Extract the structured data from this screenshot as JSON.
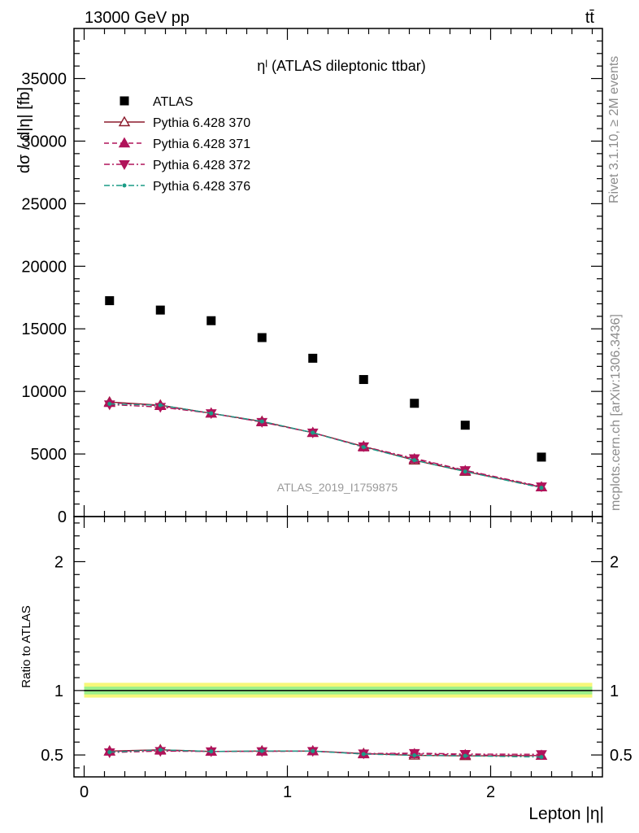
{
  "header": {
    "left": "13000 GeV pp",
    "right": "tt̄"
  },
  "side_labels": {
    "rivet": "Rivet 3.1.10, ≥ 2M events",
    "mcplots": "mcplots.cern.ch [arXiv:1306.3436]"
  },
  "chart_data": [
    {
      "type": "scatter",
      "title": "ηˡ (ATLAS dileptonic ttbar)",
      "ylabel": "dσ / d|η| [fb]",
      "analysis_label": "ATLAS_2019_I1759875",
      "ylim": [
        0,
        39000
      ],
      "xlim": [
        -0.05,
        2.55
      ],
      "y_ticks": [
        0,
        5000,
        10000,
        15000,
        20000,
        25000,
        30000,
        35000
      ],
      "y_tick_labels": [
        "0",
        "5000",
        "10000",
        "15000",
        "20000",
        "25000",
        "30000",
        "35000"
      ],
      "x": [
        0.125,
        0.375,
        0.625,
        0.875,
        1.125,
        1.375,
        1.625,
        1.875,
        2.25
      ],
      "series": [
        {
          "name": "ATLAS",
          "marker": "square",
          "color": "#000000",
          "values": [
            17250,
            16500,
            15650,
            14300,
            12650,
            10950,
            9050,
            7300,
            4750
          ]
        },
        {
          "name": "Pythia 6.428 370",
          "marker": "triangle-up-open",
          "line": "solid",
          "color": "#8b1a2b",
          "values": [
            9150,
            8900,
            8250,
            7600,
            6700,
            5600,
            4500,
            3600,
            2350
          ]
        },
        {
          "name": "Pythia 6.428 371",
          "marker": "triangle-up",
          "line": "dashed",
          "color": "#b0135a",
          "values": [
            9100,
            8850,
            8250,
            7550,
            6700,
            5550,
            4600,
            3650,
            2350
          ]
        },
        {
          "name": "Pythia 6.428 372",
          "marker": "triangle-down",
          "line": "dashdot",
          "color": "#b0135a",
          "values": [
            8950,
            8750,
            8250,
            7550,
            6700,
            5600,
            4650,
            3700,
            2400
          ]
        },
        {
          "name": "Pythia 6.428 376",
          "marker": "dot",
          "line": "dashdot",
          "color": "#1a9c86",
          "values": [
            9000,
            8900,
            8250,
            7600,
            6700,
            5550,
            4500,
            3600,
            2300
          ]
        }
      ]
    },
    {
      "type": "line",
      "ylabel": "Ratio to ATLAS",
      "xlabel": "Lepton |η|",
      "ylim": [
        0.33,
        2.35
      ],
      "y_ticks": [
        0.5,
        1,
        2
      ],
      "y_tick_labels": [
        "0.5",
        "1",
        "2"
      ],
      "x_ticks": [
        0,
        1,
        2
      ],
      "x_tick_labels": [
        "0",
        "1",
        "2"
      ],
      "reference": 1,
      "band_inner": [
        0.97,
        1.03
      ],
      "band_outer": [
        0.945,
        1.06
      ],
      "x": [
        0.125,
        0.375,
        0.625,
        0.875,
        1.125,
        1.375,
        1.625,
        1.875,
        2.25
      ],
      "series": [
        {
          "name": "Pythia 6.428 370",
          "values": [
            0.53,
            0.54,
            0.527,
            0.531,
            0.53,
            0.511,
            0.497,
            0.493,
            0.495
          ]
        },
        {
          "name": "Pythia 6.428 371",
          "values": [
            0.528,
            0.536,
            0.527,
            0.528,
            0.53,
            0.507,
            0.508,
            0.5,
            0.495
          ]
        },
        {
          "name": "Pythia 6.428 372",
          "values": [
            0.519,
            0.53,
            0.527,
            0.528,
            0.53,
            0.511,
            0.514,
            0.507,
            0.505
          ]
        },
        {
          "name": "Pythia 6.428 376",
          "values": [
            0.522,
            0.54,
            0.527,
            0.531,
            0.53,
            0.507,
            0.497,
            0.493,
            0.484
          ]
        }
      ]
    }
  ]
}
